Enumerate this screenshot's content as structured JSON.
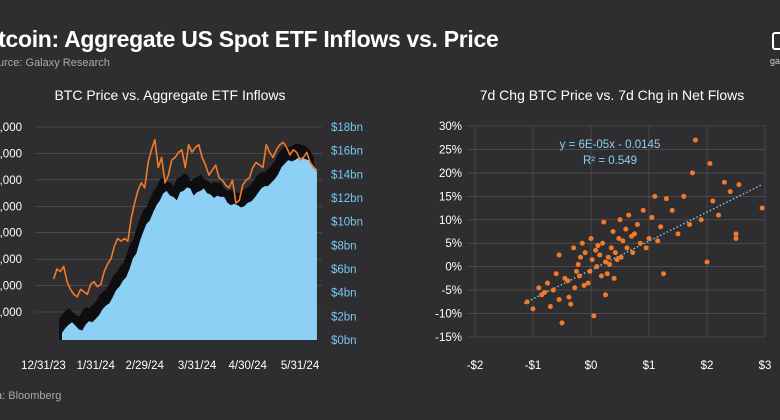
{
  "header": {
    "title": "itcoin: Aggregate US Spot ETF Inflows vs. Price",
    "source": "urce: Galaxy Research",
    "logo_text": "gal",
    "footer": "a: Bloomberg"
  },
  "colors": {
    "background": "#2e2e31",
    "price_line": "#f07a2a",
    "inflow_area": "#8cd0f5",
    "inflow_shadow": "#0e0e10",
    "right_axis": "#79c6ef",
    "scatter_points": "#f07a2a",
    "trendline": "#8cd0f5",
    "grid": "#5a5a5e"
  },
  "chart_data": [
    {
      "type": "line",
      "title": "BTC Price vs. Aggregate ETF Inflows",
      "x_ticks": [
        "12/31/23",
        "1/31/24",
        "2/29/24",
        "3/31/24",
        "4/30/24",
        "5/31/24"
      ],
      "left_ticks": [
        ",000",
        ",000",
        ",000",
        ",000",
        ",000",
        ",000",
        ",000",
        ",000"
      ],
      "right_ticks": [
        "$0bn",
        "$2bn",
        "$4bn",
        "$6bn",
        "$8bn",
        "$10bn",
        "$12bn",
        "$14bn",
        "$16bn",
        "$18bn"
      ],
      "ylim_right": [
        0,
        18
      ],
      "x_day_range": [
        -5,
        165
      ],
      "series": [
        {
          "kind": "price",
          "axis": "left",
          "x": [
            6,
            8,
            10,
            12,
            14,
            16,
            18,
            20,
            22,
            24,
            26,
            28,
            30,
            32,
            34,
            36,
            38,
            40,
            42,
            44,
            46,
            48,
            50,
            52,
            54,
            56,
            58,
            60,
            62,
            64,
            66,
            68,
            70,
            72,
            74,
            76,
            78,
            80,
            82,
            84,
            86,
            88,
            90,
            92,
            94,
            96,
            98,
            100,
            102,
            104,
            106,
            108,
            110,
            112,
            114,
            116,
            118,
            120,
            122,
            124,
            126,
            128,
            130,
            132,
            134,
            136,
            138,
            140,
            142,
            144,
            146,
            148,
            150,
            152,
            154,
            156,
            158,
            160,
            162
          ],
          "values": [
            44.0,
            46.0,
            45.5,
            46.5,
            43.5,
            42.0,
            41.0,
            40.5,
            42.0,
            41.5,
            41.0,
            43.0,
            43.5,
            42.5,
            43.0,
            45.5,
            47.0,
            48.0,
            50.5,
            52.0,
            51.5,
            52.0,
            51.5,
            56.0,
            59.0,
            61.5,
            63.0,
            62.0,
            67.0,
            69.5,
            71.5,
            66.0,
            68.0,
            63.0,
            64.5,
            67.5,
            68.0,
            69.0,
            69.5,
            66.0,
            70.5,
            69.0,
            70.0,
            70.5,
            68.0,
            66.5,
            64.5,
            65.5,
            66.5,
            64.0,
            63.5,
            62.5,
            62.0,
            63.5,
            59.0,
            59.5,
            62.5,
            63.5,
            64.0,
            66.0,
            67.0,
            66.5,
            66.0,
            70.5,
            69.0,
            68.0,
            69.5,
            70.5,
            71.0,
            70.0,
            68.5,
            69.5,
            69.0,
            67.5,
            68.0,
            69.0,
            67.0,
            66.0,
            65.5
          ]
        },
        {
          "kind": "inflows",
          "axis": "right",
          "x": [
            11,
            13,
            15,
            17,
            19,
            21,
            23,
            25,
            27,
            29,
            31,
            33,
            35,
            37,
            39,
            41,
            43,
            45,
            47,
            49,
            51,
            53,
            55,
            57,
            59,
            61,
            63,
            65,
            67,
            69,
            71,
            73,
            75,
            77,
            79,
            81,
            83,
            85,
            87,
            89,
            91,
            93,
            95,
            97,
            99,
            101,
            103,
            105,
            107,
            109,
            111,
            113,
            115,
            117,
            119,
            121,
            123,
            125,
            127,
            129,
            131,
            133,
            135,
            137,
            139,
            141,
            143,
            145,
            147,
            149,
            151,
            153,
            155,
            157,
            159,
            161,
            162
          ],
          "values": [
            0.6,
            1.0,
            1.3,
            1.5,
            1.2,
            0.9,
            0.8,
            1.3,
            1.6,
            1.5,
            1.8,
            2.1,
            2.6,
            2.9,
            3.1,
            3.6,
            4.2,
            4.5,
            5.0,
            5.3,
            6.0,
            6.9,
            7.3,
            8.3,
            9.1,
            9.8,
            10.1,
            10.8,
            11.4,
            11.8,
            12.4,
            12.6,
            12.2,
            12.1,
            11.8,
            12.5,
            12.6,
            12.9,
            12.8,
            12.2,
            12.5,
            12.6,
            12.8,
            12.4,
            12.3,
            12.0,
            12.2,
            12.1,
            12.1,
            11.6,
            11.4,
            11.5,
            11.4,
            11.2,
            11.3,
            11.6,
            11.7,
            12.0,
            12.4,
            12.8,
            13.0,
            13.0,
            13.3,
            13.6,
            14.0,
            14.6,
            14.9,
            15.2,
            15.1,
            15.2,
            15.4,
            15.4,
            15.3,
            15.2,
            14.9,
            14.5,
            14.2
          ]
        }
      ]
    },
    {
      "type": "scatter",
      "title": "7d Chg BTC Price vs. 7d Chg in Net Flows",
      "x_ticks": [
        "-$2",
        "-$1",
        "$0",
        "$1",
        "$2",
        "$3"
      ],
      "y_ticks": [
        "30%",
        "25%",
        "20%",
        "15%",
        "10%",
        "5%",
        "0%",
        "-5%",
        "-10%",
        "-15%"
      ],
      "xlim": [
        -2,
        3
      ],
      "ylim": [
        -15,
        30
      ],
      "equation": "y = 6E-05x - 0.0145",
      "r_squared": "R² = 0.549",
      "trendline": {
        "x": [
          -1.15,
          2.95
        ],
        "y": [
          -7.8,
          17.5
        ]
      },
      "points": [
        [
          -1.1,
          -7.5
        ],
        [
          -1.0,
          -9.0
        ],
        [
          -0.9,
          -4.5
        ],
        [
          -0.85,
          -6.0
        ],
        [
          -0.8,
          -5.5
        ],
        [
          -0.75,
          -3.5
        ],
        [
          -0.7,
          -8.5
        ],
        [
          -0.65,
          -5.0
        ],
        [
          -0.6,
          -1.5
        ],
        [
          -0.55,
          -7.0
        ],
        [
          -0.5,
          -12.0
        ],
        [
          -0.45,
          -2.5
        ],
        [
          -0.4,
          -3.0
        ],
        [
          -0.38,
          -6.5
        ],
        [
          -0.35,
          -8.0
        ],
        [
          -0.3,
          4.0
        ],
        [
          -0.28,
          -4.5
        ],
        [
          -0.25,
          -1.0
        ],
        [
          -0.22,
          0.5
        ],
        [
          -0.2,
          -2.0
        ],
        [
          -0.18,
          2.0
        ],
        [
          -0.15,
          5.0
        ],
        [
          -0.12,
          -4.0
        ],
        [
          -0.1,
          3.0
        ],
        [
          -0.05,
          -3.5
        ],
        [
          -0.02,
          -1.0
        ],
        [
          0.0,
          6.0
        ],
        [
          0.02,
          1.5
        ],
        [
          0.05,
          -10.5
        ],
        [
          0.08,
          3.5
        ],
        [
          0.1,
          0.0
        ],
        [
          0.12,
          4.5
        ],
        [
          0.15,
          2.5
        ],
        [
          0.18,
          -2.0
        ],
        [
          0.2,
          5.0
        ],
        [
          0.22,
          9.5
        ],
        [
          0.25,
          1.0
        ],
        [
          0.28,
          -1.5
        ],
        [
          0.3,
          2.0
        ],
        [
          0.32,
          0.5
        ],
        [
          0.35,
          4.0
        ],
        [
          0.38,
          7.5
        ],
        [
          0.4,
          -2.5
        ],
        [
          0.42,
          3.0
        ],
        [
          0.45,
          1.5
        ],
        [
          0.48,
          6.0
        ],
        [
          0.5,
          10.0
        ],
        [
          0.52,
          2.0
        ],
        [
          0.55,
          5.5
        ],
        [
          0.6,
          8.0
        ],
        [
          0.62,
          4.0
        ],
        [
          0.65,
          11.0
        ],
        [
          0.7,
          6.5
        ],
        [
          0.72,
          3.0
        ],
        [
          0.75,
          7.0
        ],
        [
          0.8,
          9.0
        ],
        [
          0.85,
          5.0
        ],
        [
          0.9,
          12.0
        ],
        [
          0.95,
          4.0
        ],
        [
          1.0,
          6.0
        ],
        [
          1.05,
          10.5
        ],
        [
          1.1,
          15.0
        ],
        [
          1.15,
          5.5
        ],
        [
          1.2,
          8.5
        ],
        [
          1.3,
          14.5
        ],
        [
          1.4,
          12.0
        ],
        [
          1.5,
          7.0
        ],
        [
          1.6,
          15.0
        ],
        [
          1.7,
          9.0
        ],
        [
          1.75,
          20.0
        ],
        [
          1.8,
          27.0
        ],
        [
          1.9,
          10.0
        ],
        [
          2.0,
          1.0
        ],
        [
          2.05,
          22.0
        ],
        [
          2.1,
          14.0
        ],
        [
          2.2,
          11.0
        ],
        [
          2.3,
          18.0
        ],
        [
          2.4,
          16.0
        ],
        [
          2.5,
          6.0
        ],
        [
          2.5,
          7.0
        ],
        [
          2.55,
          17.5
        ],
        [
          2.95,
          12.5
        ],
        [
          -0.55,
          2.5
        ],
        [
          0.25,
          -6.0
        ],
        [
          1.25,
          -1.5
        ]
      ]
    }
  ]
}
